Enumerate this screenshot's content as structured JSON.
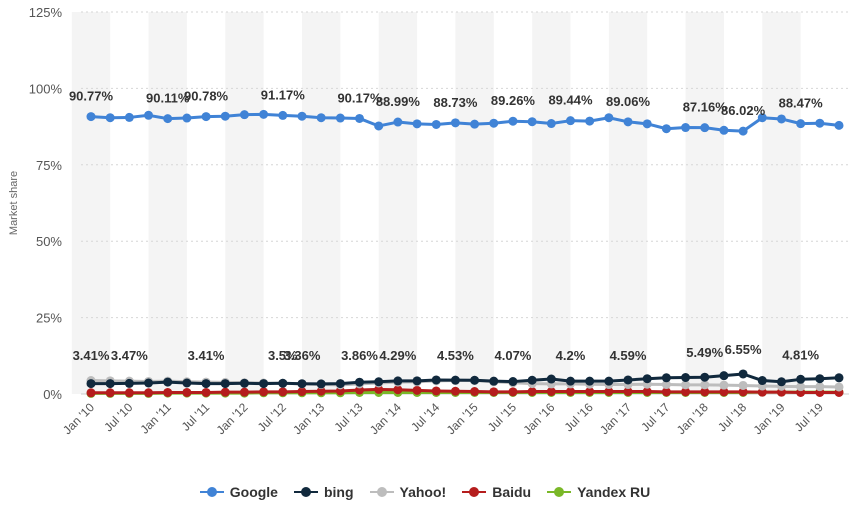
{
  "chart_data": {
    "type": "line",
    "ylabel": "Market share",
    "ylim": [
      0,
      125
    ],
    "y_ticks": [
      "0%",
      "25%",
      "50%",
      "75%",
      "100%",
      "125%"
    ],
    "x_tick_labels": [
      "Jan '10",
      "Jul '10",
      "Jan '11",
      "Jul '11",
      "Jan '12",
      "Jul '12",
      "Jan '13",
      "Jul '13",
      "Jan '14",
      "Jul '14",
      "Jan '15",
      "Jul '15",
      "Jan '16",
      "Jul '16",
      "Jan '17",
      "Jul '17",
      "Jan '18",
      "Jul '18",
      "Jan '19",
      "Jul '19"
    ],
    "x": [
      "Jan '10",
      "Apr '10",
      "Jul '10",
      "Oct '10",
      "Jan '11",
      "Apr '11",
      "Jul '11",
      "Oct '11",
      "Jan '12",
      "Apr '12",
      "Jul '12",
      "Oct '12",
      "Jan '13",
      "Apr '13",
      "Jul '13",
      "Oct '13",
      "Jan '14",
      "Apr '14",
      "Jul '14",
      "Oct '14",
      "Jan '15",
      "Apr '15",
      "Jul '15",
      "Oct '15",
      "Jan '16",
      "Apr '16",
      "Jul '16",
      "Oct '16",
      "Jan '17",
      "Apr '17",
      "Jul '17",
      "Oct '17",
      "Jan '18",
      "Apr '18",
      "Jul '18",
      "Oct '18",
      "Jan '19",
      "Apr '19",
      "Jul '19",
      "Oct '19"
    ],
    "grid": true,
    "legend_position": "bottom",
    "series": [
      {
        "name": "Google",
        "color": "#4083d6",
        "values": [
          90.77,
          90.4,
          90.5,
          91.2,
          90.11,
          90.3,
          90.78,
          90.9,
          91.4,
          91.5,
          91.17,
          90.9,
          90.4,
          90.3,
          90.17,
          87.7,
          88.99,
          88.4,
          88.2,
          88.73,
          88.3,
          88.6,
          89.26,
          89.1,
          88.5,
          89.44,
          89.3,
          90.4,
          89.06,
          88.4,
          86.8,
          87.2,
          87.16,
          86.3,
          86.02,
          90.4,
          90.0,
          88.47,
          88.6,
          87.9
        ]
      },
      {
        "name": "bing",
        "color": "#11293d",
        "values": [
          3.41,
          3.4,
          3.47,
          3.6,
          3.9,
          3.6,
          3.41,
          3.4,
          3.5,
          3.4,
          3.5,
          3.36,
          3.3,
          3.4,
          3.86,
          4.0,
          4.29,
          4.3,
          4.6,
          4.53,
          4.5,
          4.2,
          4.07,
          4.5,
          4.9,
          4.2,
          4.2,
          4.2,
          4.59,
          5.0,
          5.3,
          5.4,
          5.49,
          6.0,
          6.55,
          4.4,
          4.0,
          4.81,
          5.0,
          5.3
        ]
      },
      {
        "name": "Yahoo!",
        "color": "#bdbdbd",
        "values": [
          4.4,
          4.3,
          4.2,
          4.1,
          4.2,
          4.0,
          3.9,
          3.8,
          3.7,
          3.6,
          3.5,
          3.3,
          3.1,
          3.0,
          3.3,
          3.6,
          3.9,
          4.0,
          4.3,
          4.4,
          4.4,
          4.0,
          3.7,
          3.4,
          3.3,
          3.3,
          3.2,
          3.1,
          3.1,
          3.2,
          3.1,
          3.0,
          3.0,
          2.9,
          2.8,
          2.6,
          2.5,
          2.4,
          2.4,
          2.3
        ]
      },
      {
        "name": "Baidu",
        "color": "#b51d1d",
        "values": [
          0.4,
          0.4,
          0.4,
          0.4,
          0.5,
          0.5,
          0.5,
          0.6,
          0.6,
          0.7,
          0.7,
          0.8,
          0.9,
          1.0,
          1.3,
          1.5,
          1.4,
          1.2,
          1.0,
          0.9,
          0.8,
          0.7,
          0.7,
          0.8,
          0.8,
          0.8,
          0.8,
          0.8,
          0.8,
          0.8,
          0.7,
          0.7,
          0.7,
          0.7,
          0.7,
          0.6,
          0.6,
          0.5,
          0.5,
          0.5
        ]
      },
      {
        "name": "Yandex RU",
        "color": "#7ab828",
        "values": [
          0.2,
          0.2,
          0.2,
          0.2,
          0.3,
          0.3,
          0.3,
          0.3,
          0.3,
          0.4,
          0.4,
          0.4,
          0.4,
          0.4,
          0.5,
          0.5,
          0.5,
          0.5,
          0.5,
          0.5,
          0.5,
          0.5,
          0.5,
          0.5,
          0.5,
          0.5,
          0.5,
          0.5,
          0.5,
          0.5,
          0.5,
          0.5,
          0.5,
          0.5,
          0.5,
          0.6,
          0.6,
          0.6,
          0.6,
          0.6
        ]
      }
    ],
    "annotations": [
      {
        "series": "Google",
        "index": 0,
        "text": "90.77%"
      },
      {
        "series": "Google",
        "index": 4,
        "text": "90.11%"
      },
      {
        "series": "Google",
        "index": 6,
        "text": "90.78%"
      },
      {
        "series": "Google",
        "index": 10,
        "text": "91.17%"
      },
      {
        "series": "Google",
        "index": 14,
        "text": "90.17%"
      },
      {
        "series": "Google",
        "index": 16,
        "text": "88.99%"
      },
      {
        "series": "Google",
        "index": 19,
        "text": "88.73%"
      },
      {
        "series": "Google",
        "index": 22,
        "text": "89.26%"
      },
      {
        "series": "Google",
        "index": 25,
        "text": "89.44%"
      },
      {
        "series": "Google",
        "index": 28,
        "text": "89.06%"
      },
      {
        "series": "Google",
        "index": 32,
        "text": "87.16%"
      },
      {
        "series": "Google",
        "index": 34,
        "text": "86.02%"
      },
      {
        "series": "Google",
        "index": 37,
        "text": "88.47%"
      },
      {
        "series": "bing",
        "index": 0,
        "text": "3.41%"
      },
      {
        "series": "bing",
        "index": 2,
        "text": "3.47%"
      },
      {
        "series": "bing",
        "index": 6,
        "text": "3.41%"
      },
      {
        "series": "bing",
        "index": 10,
        "text": "3.5%"
      },
      {
        "series": "bing",
        "index": 11,
        "text": "3.36%"
      },
      {
        "series": "bing",
        "index": 14,
        "text": "3.86%"
      },
      {
        "series": "bing",
        "index": 16,
        "text": "4.29%"
      },
      {
        "series": "bing",
        "index": 19,
        "text": "4.53%"
      },
      {
        "series": "bing",
        "index": 22,
        "text": "4.07%"
      },
      {
        "series": "bing",
        "index": 25,
        "text": "4.2%"
      },
      {
        "series": "bing",
        "index": 28,
        "text": "4.59%"
      },
      {
        "series": "bing",
        "index": 32,
        "text": "5.49%"
      },
      {
        "series": "bing",
        "index": 34,
        "text": "6.55%"
      },
      {
        "series": "bing",
        "index": 37,
        "text": "4.81%"
      }
    ]
  }
}
